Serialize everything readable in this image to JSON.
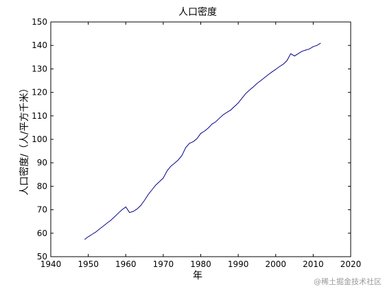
{
  "chart_data": {
    "type": "line",
    "title": "人口密度",
    "xlabel": "年",
    "ylabel": "人口密度/（人/平方千米）",
    "xlim": [
      1940,
      2020
    ],
    "ylim": [
      50,
      150
    ],
    "xticks": [
      1940,
      1950,
      1960,
      1970,
      1980,
      1990,
      2000,
      2010,
      2020
    ],
    "yticks": [
      50,
      60,
      70,
      80,
      90,
      100,
      110,
      120,
      130,
      140,
      150
    ],
    "grid": false,
    "legend": "none",
    "line_color": "#00008b",
    "series": [
      {
        "x": [
          1949,
          1950,
          1951,
          1952,
          1953,
          1954,
          1955,
          1956,
          1957,
          1958,
          1959,
          1960,
          1961,
          1962,
          1963,
          1964,
          1965,
          1966,
          1967,
          1968,
          1969,
          1970,
          1971,
          1972,
          1973,
          1974,
          1975,
          1976,
          1977,
          1978,
          1979,
          1980,
          1981,
          1982,
          1983,
          1984,
          1985,
          1986,
          1987,
          1988,
          1989,
          1990,
          1991,
          1992,
          1993,
          1994,
          1995,
          1996,
          1997,
          1998,
          1999,
          2000,
          2001,
          2002,
          2003,
          2004,
          2005,
          2006,
          2007,
          2008,
          2009,
          2010,
          2011,
          2012
        ],
        "y": [
          57.3,
          58.5,
          59.5,
          60.5,
          61.8,
          63.0,
          64.3,
          65.5,
          67.0,
          68.5,
          70.0,
          71.2,
          68.8,
          69.3,
          70.3,
          71.8,
          74.0,
          76.5,
          78.5,
          80.5,
          82.0,
          83.5,
          86.5,
          88.5,
          89.8,
          91.2,
          93.2,
          96.5,
          98.3,
          99.0,
          100.3,
          102.5,
          103.5,
          104.8,
          106.5,
          107.5,
          109.0,
          110.5,
          111.5,
          112.5,
          114.0,
          115.5,
          117.5,
          119.5,
          121.0,
          122.3,
          123.8,
          125.0,
          126.3,
          127.5,
          128.7,
          129.8,
          131.0,
          132.0,
          133.5,
          136.5,
          135.5,
          136.5,
          137.5,
          138.0,
          138.5,
          139.5,
          140.0,
          141.0
        ]
      }
    ]
  },
  "watermark": "@稀土掘金技术社区"
}
